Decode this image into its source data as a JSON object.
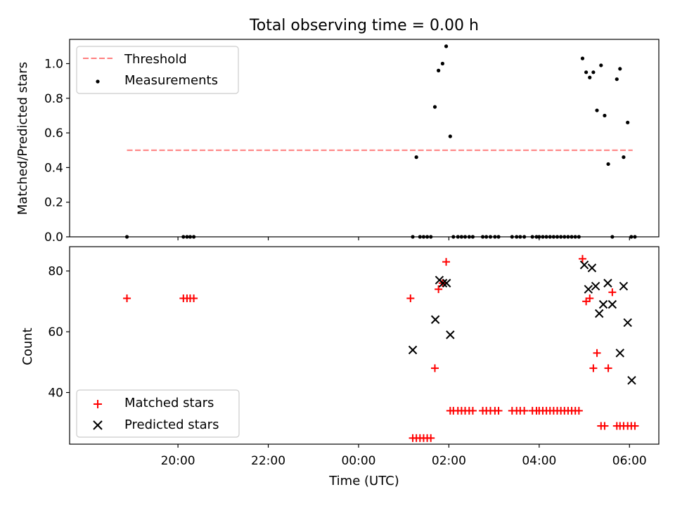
{
  "chart_data": [
    {
      "type": "scatter",
      "title": "Total observing time = 0.00 h",
      "xlabel": "",
      "ylabel": "Matched/Predicted stars",
      "x_unit": "hours (UTC, continuous; 24+ = next day)",
      "xlim": [
        17.6,
        30.65
      ],
      "ylim": [
        0,
        1.14
      ],
      "yticks": [
        0.0,
        0.2,
        0.4,
        0.6,
        0.8,
        1.0
      ],
      "ytick_labels": [
        "0.0",
        "0.2",
        "0.4",
        "0.6",
        "0.8",
        "1.0"
      ],
      "xticks": [
        20,
        22,
        24,
        26,
        28,
        30
      ],
      "xtick_labels": [
        "",
        "",
        "",
        "",
        "",
        ""
      ],
      "legend_position": "top-left",
      "threshold": {
        "name": "Threshold",
        "value": 0.5,
        "x_range": [
          18.87,
          30.07
        ],
        "color": "#ff7f7f"
      },
      "series": [
        {
          "name": "Measurements",
          "color": "#000000",
          "x": [
            18.87,
            20.12,
            20.2,
            20.27,
            20.35,
            25.2,
            25.28,
            25.36,
            25.44,
            25.52,
            25.6,
            25.69,
            25.77,
            25.86,
            25.94,
            26.03,
            26.1,
            26.2,
            26.28,
            26.36,
            26.45,
            26.53,
            26.75,
            26.83,
            26.92,
            27.02,
            27.1,
            27.4,
            27.5,
            27.58,
            27.67,
            27.85,
            27.94,
            28.0,
            28.08,
            28.16,
            28.24,
            28.32,
            28.4,
            28.48,
            28.56,
            28.64,
            28.72,
            28.8,
            28.88,
            28.96,
            29.04,
            29.12,
            29.2,
            29.28,
            29.37,
            29.45,
            29.53,
            29.62,
            29.72,
            29.79,
            29.87,
            29.96,
            30.04,
            30.12
          ],
          "y": [
            0.0,
            0.0,
            0.0,
            0.0,
            0.0,
            0.0,
            0.46,
            0.0,
            0.0,
            0.0,
            0.0,
            0.75,
            0.96,
            1.0,
            1.1,
            0.58,
            0.0,
            0.0,
            0.0,
            0.0,
            0.0,
            0.0,
            0.0,
            0.0,
            0.0,
            0.0,
            0.0,
            0.0,
            0.0,
            0.0,
            0.0,
            0.0,
            0.0,
            0.0,
            0.0,
            0.0,
            0.0,
            0.0,
            0.0,
            0.0,
            0.0,
            0.0,
            0.0,
            0.0,
            0.0,
            1.03,
            0.95,
            0.92,
            0.95,
            0.73,
            0.99,
            0.7,
            0.42,
            0.0,
            0.91,
            0.97,
            0.46,
            0.66,
            0.0,
            0.0
          ]
        }
      ]
    },
    {
      "type": "scatter",
      "title": "",
      "xlabel": "Time (UTC)",
      "ylabel": "Count",
      "x_unit": "hours (UTC, continuous; 24+ = next day)",
      "xlim": [
        17.6,
        30.65
      ],
      "ylim": [
        23,
        88
      ],
      "yticks": [
        40,
        60,
        80
      ],
      "ytick_labels": [
        "40",
        "60",
        "80"
      ],
      "xticks": [
        20,
        22,
        24,
        26,
        28,
        30
      ],
      "xtick_labels": [
        "20:00",
        "22:00",
        "00:00",
        "02:00",
        "04:00",
        "06:00"
      ],
      "legend_position": "bottom-left",
      "series": [
        {
          "name": "Matched stars",
          "marker": "plus",
          "color": "#ff0000",
          "x": [
            18.87,
            20.12,
            20.2,
            20.27,
            20.35,
            25.15,
            25.2,
            25.28,
            25.36,
            25.44,
            25.52,
            25.6,
            25.69,
            25.77,
            25.86,
            25.94,
            26.03,
            26.1,
            26.2,
            26.28,
            26.36,
            26.45,
            26.53,
            26.75,
            26.83,
            26.92,
            27.02,
            27.1,
            27.4,
            27.5,
            27.58,
            27.67,
            27.85,
            27.94,
            28.0,
            28.08,
            28.16,
            28.24,
            28.32,
            28.4,
            28.48,
            28.56,
            28.64,
            28.72,
            28.8,
            28.88,
            28.96,
            29.04,
            29.12,
            29.2,
            29.28,
            29.37,
            29.45,
            29.53,
            29.62,
            29.72,
            29.79,
            29.87,
            29.96,
            30.04,
            30.12
          ],
          "y": [
            71,
            71,
            71,
            71,
            71,
            71,
            25,
            25,
            25,
            25,
            25,
            25,
            48,
            74,
            76,
            83,
            34,
            34,
            34,
            34,
            34,
            34,
            34,
            34,
            34,
            34,
            34,
            34,
            34,
            34,
            34,
            34,
            34,
            34,
            34,
            34,
            34,
            34,
            34,
            34,
            34,
            34,
            34,
            34,
            34,
            34,
            84,
            70,
            71,
            48,
            53,
            29,
            29,
            48,
            73,
            29,
            29,
            29,
            29,
            29,
            29
          ]
        },
        {
          "name": "Predicted stars",
          "marker": "x",
          "color": "#000000",
          "x": [
            25.2,
            25.7,
            25.79,
            25.87,
            25.95,
            26.03,
            29.0,
            29.09,
            29.17,
            29.25,
            29.33,
            29.42,
            29.52,
            29.62,
            29.79,
            29.87,
            29.96,
            30.05
          ],
          "y": [
            54,
            64,
            77,
            76,
            76,
            59,
            82,
            74,
            81,
            75,
            66,
            69,
            76,
            69,
            53,
            75,
            63,
            44
          ]
        }
      ]
    }
  ]
}
